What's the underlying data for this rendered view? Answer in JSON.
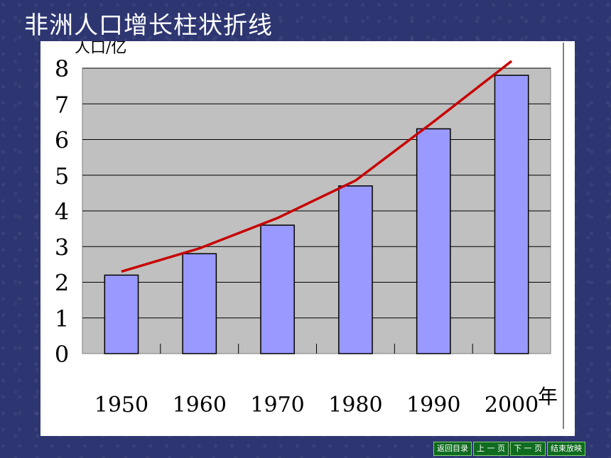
{
  "slide": {
    "title": "非洲人口增长柱状折线"
  },
  "chart_data": {
    "type": "bar",
    "ylabel": "人口/亿",
    "xlabel": "年",
    "categories": [
      "1950",
      "1960",
      "1970",
      "1980",
      "1990",
      "2000"
    ],
    "values": [
      2.2,
      2.8,
      3.6,
      4.7,
      6.3,
      7.8
    ],
    "y_ticks": [
      "0",
      "1",
      "2",
      "3",
      "4",
      "5",
      "6",
      "7",
      "8"
    ],
    "ylim": [
      0,
      8
    ],
    "trend_line": {
      "type": "line",
      "values": [
        2.3,
        2.95,
        3.8,
        4.85,
        6.5,
        8.2
      ],
      "color": "#c80000"
    },
    "bar_color": "#9999ff",
    "plot_background": "#c0c0c0",
    "grid": true
  },
  "nav": {
    "buttons": [
      "返回目录",
      "上 一 页",
      "下 一 页",
      "结束放映"
    ]
  }
}
